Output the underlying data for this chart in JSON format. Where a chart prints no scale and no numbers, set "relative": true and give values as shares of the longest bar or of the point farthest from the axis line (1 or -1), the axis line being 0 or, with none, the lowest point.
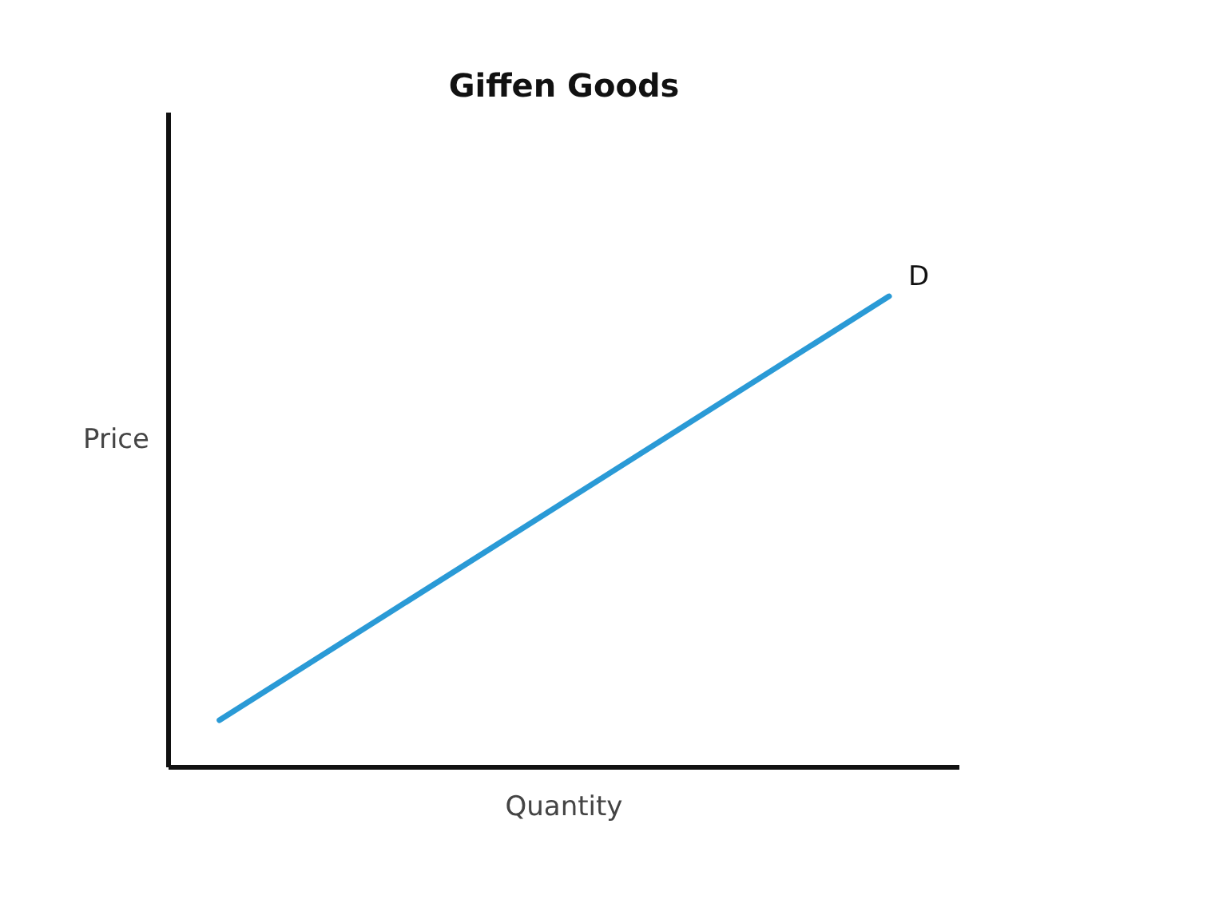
{
  "chart_data": {
    "type": "line",
    "title": "Giffen Goods",
    "xlabel": "Quantity",
    "ylabel": "Price",
    "relative": true,
    "categories": [
      null,
      null
    ],
    "series": [
      {
        "name": "D",
        "color": "#2a9ad6",
        "values": [
          0.1,
          1
        ]
      }
    ]
  }
}
